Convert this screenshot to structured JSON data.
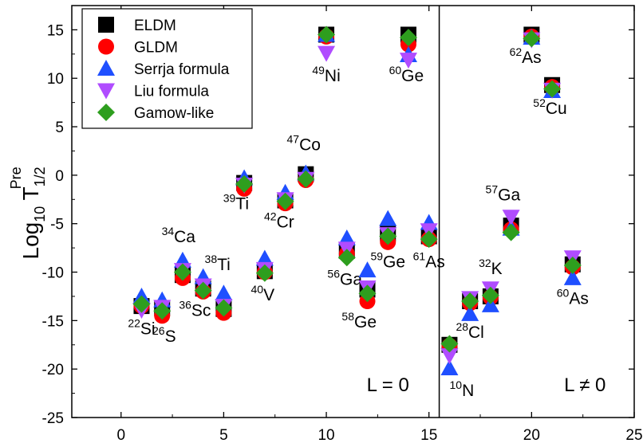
{
  "chart_data": {
    "type": "scatter",
    "title": "",
    "xlabel": "",
    "ylabel": {
      "main": "Log",
      "sub1": "10",
      "T": " T",
      "sub2": "1/2",
      "sup": "Pre"
    },
    "xlim": [
      -2.4,
      25
    ],
    "ylim": [
      -25,
      17.5
    ],
    "xticks": [
      0,
      5,
      10,
      15,
      20,
      25
    ],
    "yticks": [
      -25,
      -20,
      -15,
      -10,
      -5,
      0,
      5,
      10,
      15
    ],
    "divider_x": 15.5,
    "region_labels": [
      {
        "text": "L = 0",
        "x": 13.0,
        "y": -22.3
      },
      {
        "text": "L ≠ 0",
        "x": 22.6,
        "y": -22.3
      }
    ],
    "legend": {
      "position": "top-left"
    },
    "series": [
      {
        "name": "ELDM",
        "marker": "square",
        "color": "#000000",
        "points": [
          [
            1,
            -13.5
          ],
          [
            2,
            -13.7
          ],
          [
            3,
            -10.3
          ],
          [
            4,
            -11.7
          ],
          [
            5,
            -13.8
          ],
          [
            6,
            -0.8
          ],
          [
            7,
            -9.9
          ],
          [
            8,
            -2.6
          ],
          [
            9,
            0.1
          ],
          [
            10,
            14.5
          ],
          [
            11,
            -7.8
          ],
          [
            12,
            -11.8
          ],
          [
            13,
            -6.0
          ],
          [
            14,
            14.5
          ],
          [
            15,
            -6.3
          ],
          [
            16,
            -17.5
          ],
          [
            17,
            -13.0
          ],
          [
            18,
            -12.5
          ],
          [
            19,
            -5.2
          ],
          [
            20,
            14.5
          ],
          [
            21,
            9.3
          ],
          [
            22,
            -9.2
          ]
        ]
      },
      {
        "name": "GLDM",
        "marker": "circle",
        "color": "#ff0000",
        "points": [
          [
            1,
            -13.5
          ],
          [
            2,
            -14.5
          ],
          [
            3,
            -10.6
          ],
          [
            4,
            -12.0
          ],
          [
            5,
            -14.2
          ],
          [
            6,
            -1.4
          ],
          [
            7,
            -10.0
          ],
          [
            8,
            -2.9
          ],
          [
            9,
            -0.5
          ],
          [
            10,
            14.3
          ],
          [
            11,
            -8.1
          ],
          [
            12,
            -13.0
          ],
          [
            13,
            -6.9
          ],
          [
            14,
            13.5
          ],
          [
            15,
            -6.6
          ],
          [
            16,
            -17.6
          ],
          [
            17,
            -13.2
          ],
          [
            18,
            -12.6
          ],
          [
            19,
            -5.6
          ],
          [
            20,
            14.3
          ],
          [
            21,
            9.1
          ],
          [
            22,
            -9.5
          ]
        ]
      },
      {
        "name": "Serrja formula",
        "marker": "triangle-up",
        "color": "#1f4fff",
        "points": [
          [
            1,
            -12.5
          ],
          [
            2,
            -12.9
          ],
          [
            3,
            -8.8
          ],
          [
            4,
            -10.5
          ],
          [
            5,
            -12.2
          ],
          [
            6,
            -0.3
          ],
          [
            7,
            -8.6
          ],
          [
            8,
            -1.8
          ],
          [
            9,
            0.2
          ],
          [
            10,
            14.5
          ],
          [
            11,
            -6.5
          ],
          [
            12,
            -9.8
          ],
          [
            13,
            -4.5
          ],
          [
            14,
            12.4
          ],
          [
            15,
            -4.9
          ],
          [
            16,
            -19.9
          ],
          [
            17,
            -14.3
          ],
          [
            18,
            -13.4
          ],
          [
            19,
            -5.5
          ],
          [
            20,
            14.2
          ],
          [
            21,
            8.7
          ],
          [
            22,
            -10.6
          ]
        ]
      },
      {
        "name": "Liu formula",
        "marker": "triangle-down",
        "color": "#b04cff",
        "points": [
          [
            1,
            -13.9
          ],
          [
            2,
            -13.6
          ],
          [
            3,
            -9.8
          ],
          [
            4,
            -11.4
          ],
          [
            5,
            -13.5
          ],
          [
            6,
            -1.0
          ],
          [
            7,
            -9.7
          ],
          [
            8,
            -2.5
          ],
          [
            9,
            -0.4
          ],
          [
            10,
            12.6
          ],
          [
            11,
            -7.6
          ],
          [
            12,
            -11.6
          ],
          [
            13,
            -6.1
          ],
          [
            14,
            11.9
          ],
          [
            15,
            -5.7
          ],
          [
            16,
            -18.6
          ],
          [
            17,
            -12.7
          ],
          [
            18,
            -11.7
          ],
          [
            19,
            -4.3
          ],
          [
            20,
            14.0
          ],
          [
            21,
            8.8
          ],
          [
            22,
            -8.5
          ]
        ]
      },
      {
        "name": "Gamow-like",
        "marker": "diamond",
        "color": "#2e9e1e",
        "points": [
          [
            1,
            -13.3
          ],
          [
            2,
            -14.0
          ],
          [
            3,
            -10.0
          ],
          [
            4,
            -11.9
          ],
          [
            5,
            -13.7
          ],
          [
            6,
            -0.9
          ],
          [
            7,
            -10.1
          ],
          [
            8,
            -2.7
          ],
          [
            9,
            -0.4
          ],
          [
            10,
            14.5
          ],
          [
            11,
            -8.5
          ],
          [
            12,
            -12.2
          ],
          [
            13,
            -6.3
          ],
          [
            14,
            14.2
          ],
          [
            15,
            -6.6
          ],
          [
            16,
            -17.4
          ],
          [
            17,
            -13.0
          ],
          [
            18,
            -12.4
          ],
          [
            19,
            -5.9
          ],
          [
            20,
            14.1
          ],
          [
            21,
            8.9
          ],
          [
            22,
            -9.3
          ]
        ]
      }
    ],
    "annotations": [
      {
        "mass": "22",
        "symbol": "Si",
        "x": 1.0,
        "y": -16.4
      },
      {
        "mass": "26",
        "symbol": "S",
        "x": 2.1,
        "y": -17.2
      },
      {
        "mass": "34",
        "symbol": "Ca",
        "x": 2.8,
        "y": -6.9
      },
      {
        "mass": "36",
        "symbol": "Sc",
        "x": 3.6,
        "y": -14.5
      },
      {
        "mass": "38",
        "symbol": "Ti",
        "x": 4.7,
        "y": -9.8
      },
      {
        "mass": "40",
        "symbol": "V",
        "x": 6.9,
        "y": -12.9
      },
      {
        "mass": "39",
        "symbol": "Ti",
        "x": 5.6,
        "y": -3.5
      },
      {
        "mass": "42",
        "symbol": "Cr",
        "x": 7.7,
        "y": -5.4
      },
      {
        "mass": "47",
        "symbol": "Co",
        "x": 8.9,
        "y": 2.6
      },
      {
        "mass": "49",
        "symbol": "Ni",
        "x": 10.0,
        "y": 9.7
      },
      {
        "mass": "56",
        "symbol": "Ga",
        "x": 10.9,
        "y": -11.3
      },
      {
        "mass": "58",
        "symbol": "Ge",
        "x": 11.6,
        "y": -15.7
      },
      {
        "mass": "59",
        "symbol": "Ge",
        "x": 13.0,
        "y": -9.5
      },
      {
        "mass": "60",
        "symbol": "Ge",
        "x": 13.9,
        "y": 9.7
      },
      {
        "mass": "61",
        "symbol": "As",
        "x": 15.0,
        "y": -9.5
      },
      {
        "mass": "10",
        "symbol": "N",
        "x": 16.6,
        "y": -22.8
      },
      {
        "mass": "28",
        "symbol": "Cl",
        "x": 17.0,
        "y": -16.8
      },
      {
        "mass": "32",
        "symbol": "K",
        "x": 18.0,
        "y": -10.2
      },
      {
        "mass": "57",
        "symbol": "Ga",
        "x": 18.6,
        "y": -2.6
      },
      {
        "mass": "62",
        "symbol": "As",
        "x": 19.7,
        "y": 11.6
      },
      {
        "mass": "52",
        "symbol": "Cu",
        "x": 20.9,
        "y": 6.3
      },
      {
        "mass": "60",
        "symbol": "As",
        "x": 22.0,
        "y": -13.3
      }
    ]
  }
}
